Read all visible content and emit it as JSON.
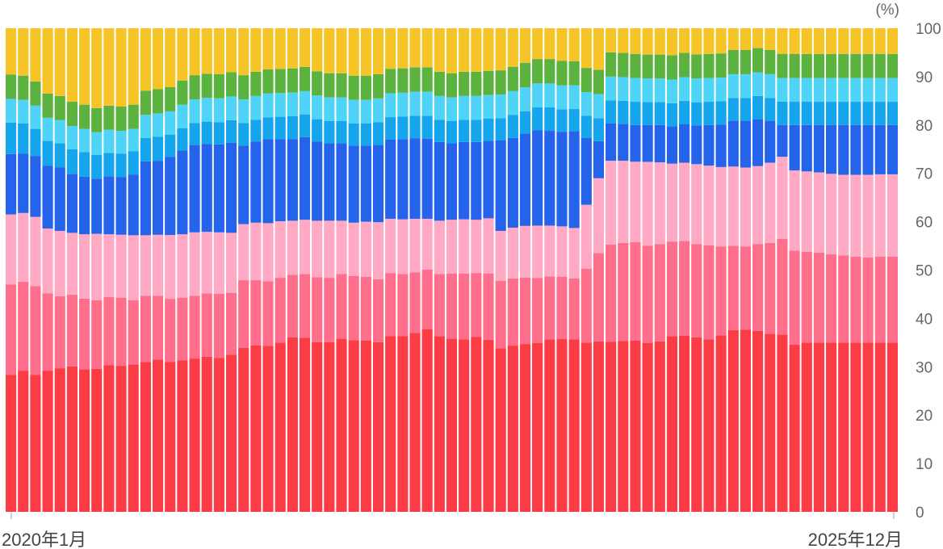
{
  "chart_data": {
    "type": "bar",
    "stacked": true,
    "unit_label": "(%)",
    "y_ticks": [
      "0",
      "10",
      "20",
      "30",
      "40",
      "50",
      "60",
      "70",
      "80",
      "90",
      "100"
    ],
    "ylim": [
      0,
      100
    ],
    "x_start_label": "2020年1月",
    "x_end_label": "2025年12月",
    "legend": "none",
    "grid": false,
    "colors": [
      "#fc3c44",
      "#ff6e8a",
      "#ffa9c5",
      "#2563eb",
      "#14a5ec",
      "#4fd4f8",
      "#5bb23f",
      "#f7c428"
    ],
    "series": [
      {
        "values": [
          28.3,
          29.2,
          28.3,
          29.2,
          29.7,
          30.1,
          29.5,
          29.6,
          30.3,
          30.2,
          30.5,
          31.0,
          31.5,
          31.0,
          31.3,
          31.7,
          32.1,
          31.8,
          32.5,
          33.9,
          34.4,
          34.3,
          35.0,
          36.1,
          36.0,
          35.1,
          35.1,
          35.8,
          35.5,
          35.4,
          35.1,
          36.0,
          36.0,
          36.6,
          37.4,
          36.3,
          35.8,
          35.7,
          36.2,
          35.6,
          33.8,
          34.1,
          34.4,
          34.6,
          35.3,
          35.4,
          35.7,
          35.0,
          34.9,
          35.2,
          35.3,
          35.4,
          35.3,
          35.6,
          36.3,
          36.4,
          36.1,
          35.7,
          36.5,
          37.6,
          37.7,
          37.4,
          36.8,
          36.7,
          34.6,
          35.0,
          35.0,
          35.0,
          35.0,
          35.0,
          35.0,
          35.0,
          35.0
        ]
      },
      {
        "values": [
          18.7,
          18.4,
          18.4,
          16.0,
          14.9,
          14.8,
          14.6,
          14.2,
          14.1,
          14.1,
          13.3,
          13.7,
          13.2,
          13.1,
          13.0,
          13.0,
          13.1,
          13.3,
          12.8,
          14.0,
          13.5,
          13.4,
          13.4,
          12.9,
          13.2,
          13.4,
          13.3,
          13.4,
          13.3,
          13.2,
          13.0,
          12.9,
          12.7,
          12.4,
          12.2,
          12.9,
          13.5,
          13.6,
          13.2,
          13.7,
          14.0,
          13.8,
          13.6,
          13.3,
          12.9,
          12.8,
          12.6,
          15.3,
          18.1,
          20.1,
          20.3,
          20.4,
          20.3,
          20.3,
          19.6,
          19.6,
          19.3,
          19.4,
          18.4,
          17.4,
          17.2,
          18.0,
          18.8,
          19.8,
          19.4,
          18.8,
          18.6,
          18.3,
          18.0,
          17.8,
          17.6,
          17.8,
          17.8
        ]
      },
      {
        "values": [
          14.5,
          14.2,
          14.3,
          13.4,
          13.5,
          12.8,
          13.3,
          13.7,
          13.0,
          13.0,
          13.4,
          12.5,
          12.6,
          13.2,
          13.1,
          13.1,
          12.7,
          12.7,
          12.4,
          11.6,
          11.9,
          12.0,
          11.7,
          11.2,
          11.2,
          11.7,
          11.8,
          11.0,
          11.0,
          11.4,
          11.8,
          11.1,
          11.2,
          11.0,
          10.4,
          11.0,
          11.1,
          11.2,
          11.0,
          11.4,
          10.3,
          10.4,
          10.6,
          10.7,
          10.4,
          10.3,
          10.4,
          13.2,
          15.3,
          17.3,
          17.0,
          16.6,
          17.5,
          17.1,
          16.1,
          16.2,
          16.5,
          16.5,
          16.4,
          16.4,
          16.3,
          16.1,
          16.6,
          17.0,
          16.6,
          16.6,
          16.6,
          16.6,
          16.7,
          16.9,
          17.1,
          17.0,
          17.0
        ]
      },
      {
        "values": [
          12.5,
          12.3,
          12.6,
          13.0,
          13.1,
          12.2,
          11.9,
          11.4,
          12.0,
          11.9,
          12.5,
          15.3,
          15.3,
          16.2,
          17.3,
          18.1,
          18.2,
          18.2,
          18.6,
          16.2,
          16.8,
          17.4,
          17.0,
          16.9,
          17.1,
          16.4,
          16.0,
          16.0,
          15.9,
          15.7,
          16.0,
          16.2,
          16.4,
          16.5,
          16.4,
          16.3,
          15.8,
          16.0,
          16.1,
          16.0,
          18.7,
          18.4,
          18.9,
          19.5,
          19.4,
          19.4,
          20.0,
          13.8,
          7.6,
          7.7,
          7.6,
          7.6,
          7.7,
          7.8,
          7.7,
          8.0,
          8.0,
          8.4,
          8.8,
          9.4,
          9.6,
          9.7,
          8.6,
          6.6,
          9.4,
          9.6,
          9.8,
          10.1,
          10.3,
          10.3,
          10.3,
          10.2,
          10.2
        ]
      },
      {
        "values": [
          6.5,
          6.2,
          5.6,
          5.1,
          5.0,
          5.1,
          5.1,
          4.9,
          4.8,
          4.9,
          4.9,
          4.8,
          5.0,
          4.6,
          4.6,
          4.5,
          4.6,
          4.6,
          4.7,
          4.7,
          4.5,
          4.5,
          4.6,
          4.7,
          4.7,
          4.6,
          4.6,
          4.6,
          4.6,
          4.6,
          4.7,
          4.6,
          4.6,
          4.6,
          4.7,
          4.6,
          4.6,
          4.6,
          4.6,
          4.6,
          4.6,
          4.7,
          4.6,
          4.7,
          4.8,
          4.6,
          4.6,
          4.6,
          4.7,
          4.8,
          4.8,
          4.8,
          4.8,
          4.8,
          4.8,
          4.8,
          4.8,
          4.8,
          4.8,
          4.8,
          4.8,
          4.8,
          4.8,
          4.8,
          4.8,
          4.8,
          4.8,
          4.8,
          4.8,
          4.8,
          4.8,
          4.8,
          4.8
        ]
      },
      {
        "values": [
          4.9,
          4.9,
          4.8,
          4.8,
          4.8,
          4.8,
          4.8,
          4.7,
          4.8,
          4.7,
          4.6,
          4.8,
          4.8,
          4.8,
          4.9,
          4.9,
          4.9,
          4.9,
          4.9,
          4.9,
          4.9,
          4.9,
          4.9,
          4.9,
          4.8,
          4.9,
          4.9,
          4.9,
          4.9,
          4.9,
          4.9,
          4.9,
          4.9,
          4.9,
          4.9,
          4.9,
          4.9,
          4.9,
          4.9,
          4.9,
          4.9,
          4.9,
          4.9,
          4.9,
          4.9,
          4.9,
          4.9,
          4.9,
          4.9,
          4.9,
          4.9,
          4.9,
          4.9,
          4.9,
          4.9,
          4.9,
          4.9,
          4.9,
          4.9,
          4.9,
          4.9,
          4.9,
          4.9,
          4.9,
          4.9,
          4.9,
          4.9,
          4.9,
          4.9,
          4.9,
          4.9,
          4.9,
          4.9
        ]
      },
      {
        "values": [
          5.0,
          5.0,
          5.0,
          5.0,
          5.0,
          5.0,
          5.0,
          5.0,
          5.0,
          5.0,
          5.0,
          5.0,
          5.0,
          5.0,
          5.0,
          5.0,
          5.0,
          5.0,
          5.0,
          5.0,
          5.0,
          5.0,
          5.0,
          5.0,
          5.0,
          5.0,
          5.0,
          5.0,
          5.0,
          5.0,
          5.0,
          5.0,
          5.0,
          5.0,
          5.0,
          5.0,
          5.0,
          5.0,
          5.0,
          5.0,
          5.0,
          5.0,
          5.0,
          5.0,
          5.0,
          5.0,
          5.0,
          5.0,
          5.0,
          5.0,
          5.0,
          5.0,
          5.0,
          5.0,
          5.0,
          5.0,
          5.0,
          5.0,
          5.0,
          5.0,
          5.0,
          5.0,
          5.0,
          5.0,
          5.0,
          5.0,
          5.0,
          5.0,
          5.0,
          5.0,
          5.0,
          5.0,
          5.0
        ]
      },
      {
        "values": [
          9.6,
          9.8,
          11.0,
          13.5,
          14.0,
          15.2,
          15.8,
          16.5,
          16.0,
          16.2,
          15.8,
          12.9,
          12.6,
          12.2,
          10.8,
          9.7,
          9.4,
          9.5,
          9.1,
          9.7,
          9.0,
          8.5,
          8.4,
          8.3,
          8.0,
          8.9,
          9.3,
          9.3,
          9.8,
          9.8,
          9.5,
          8.3,
          8.2,
          8.0,
          8.0,
          9.0,
          9.3,
          9.0,
          9.0,
          8.8,
          8.7,
          7.9,
          7.1,
          6.3,
          6.3,
          6.7,
          6.8,
          8.2,
          8.5,
          5.0,
          5.1,
          5.3,
          5.5,
          5.5,
          5.6,
          5.1,
          5.4,
          5.3,
          5.2,
          4.5,
          4.5,
          4.1,
          4.5,
          5.3,
          5.3,
          5.3,
          5.3,
          5.3,
          5.3,
          5.3,
          5.3,
          5.3,
          5.3
        ]
      }
    ]
  }
}
